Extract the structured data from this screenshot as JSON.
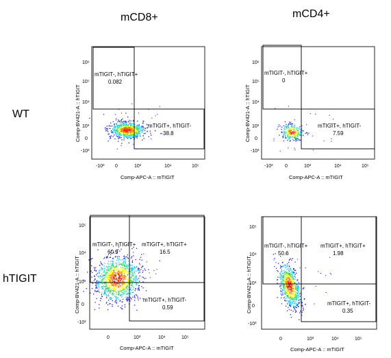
{
  "column_headers": [
    "mCD8+",
    "mCD4+"
  ],
  "row_headers": [
    "WT",
    "hTIGIT"
  ],
  "colors": {
    "density_low": "#1a1aff",
    "density_mid1": "#00d0ff",
    "density_mid2": "#30e060",
    "density_mid3": "#ffff00",
    "density_high": "#ff8000",
    "density_peak": "#ff2000"
  },
  "chart_data": [
    {
      "type": "scatter",
      "subtype": "flow-cytometry-density-plot",
      "xlabel": "Comp-APC-A :: mTIGIT",
      "ylabel": "Comp-BV421-A :: hTIGIT",
      "x_ticks": [
        "-10³",
        "0",
        "10³",
        "10⁴",
        "10⁵"
      ],
      "y_ticks": [
        "-10³",
        "0",
        "10³",
        "10⁴",
        "10⁵",
        "10⁶"
      ],
      "gates": [
        {
          "label": "mTIGIT-, hTIGIT+",
          "value": "0.082"
        },
        {
          "label": "mTIGIT+, hTIGIT-",
          "value": "38.8"
        }
      ],
      "population": {
        "center_x": 400,
        "center_y": 300,
        "spread": "moderate"
      }
    },
    {
      "type": "scatter",
      "subtype": "flow-cytometry-density-plot",
      "xlabel": "Comp-APC-A :: mTIGIT",
      "ylabel": "Comp-BV421-A :: hTIGIT",
      "x_ticks": [
        "-10³",
        "0",
        "10³",
        "10⁴",
        "10⁵"
      ],
      "y_ticks": [
        "-10³",
        "0",
        "10³",
        "10⁴",
        "10⁵",
        "10⁶"
      ],
      "gates": [
        {
          "label": "mTIGIT-, hTIGIT+",
          "value": "0"
        },
        {
          "label": "mTIGIT+, hTIGIT-",
          "value": "7.59"
        }
      ],
      "population": {
        "center_x": 150,
        "center_y": 300,
        "spread": "small"
      }
    },
    {
      "type": "scatter",
      "subtype": "flow-cytometry-density-plot",
      "xlabel": "Comp-APC-A :: mTIGIT",
      "ylabel": "Comp-BV421-A :: hTIGIT",
      "x_ticks": [
        "0",
        "10³",
        "10⁴",
        "10⁵"
      ],
      "y_ticks": [
        "-10³",
        "0",
        "10³",
        "10⁴",
        "10⁵"
      ],
      "gates": [
        {
          "label": "mTIGIT-, hTIGIT+",
          "value": "60.9"
        },
        {
          "label": "mTIGIT+, hTIGIT+",
          "value": "16.5"
        },
        {
          "label": "mTIGIT+, hTIGIT-",
          "value": "0.59"
        }
      ],
      "population": {
        "center_x": 700,
        "center_y": 2000,
        "spread": "wide"
      }
    },
    {
      "type": "scatter",
      "subtype": "flow-cytometry-density-plot",
      "xlabel": "Comp-APC-A :: mTIGIT",
      "ylabel": "Comp-BV421-A :: hTIGIT",
      "x_ticks": [
        "0",
        "10³",
        "10⁴",
        "10⁵"
      ],
      "y_ticks": [
        "-10³",
        "0",
        "10³",
        "10⁴",
        "10⁵"
      ],
      "gates": [
        {
          "label": "mTIGIT-, hTIGIT+",
          "value": "50.6"
        },
        {
          "label": "mTIGIT+, hTIGIT+",
          "value": "1.98"
        },
        {
          "label": "mTIGIT+, hTIGIT-",
          "value": "0.35"
        }
      ],
      "population": {
        "center_x": 100,
        "center_y": 800,
        "spread": "elongated"
      }
    }
  ]
}
